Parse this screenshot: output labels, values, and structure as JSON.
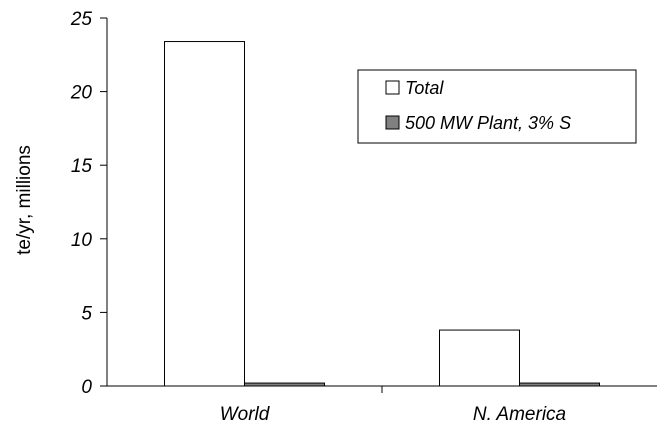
{
  "chart_data": {
    "type": "bar",
    "categories": [
      "World",
      "N. America"
    ],
    "series": [
      {
        "name": "Total",
        "values": [
          23.4,
          3.8
        ],
        "color": "#ffffff"
      },
      {
        "name": "500 MW Plant, 3% S",
        "values": [
          0.2,
          0.2
        ],
        "color": "#808080"
      }
    ],
    "ylabel": "te/yr, millions",
    "ylim": [
      0,
      25
    ],
    "yticks": [
      0,
      5,
      10,
      15,
      20,
      25
    ],
    "grid": false,
    "legend_position": "top-right"
  }
}
